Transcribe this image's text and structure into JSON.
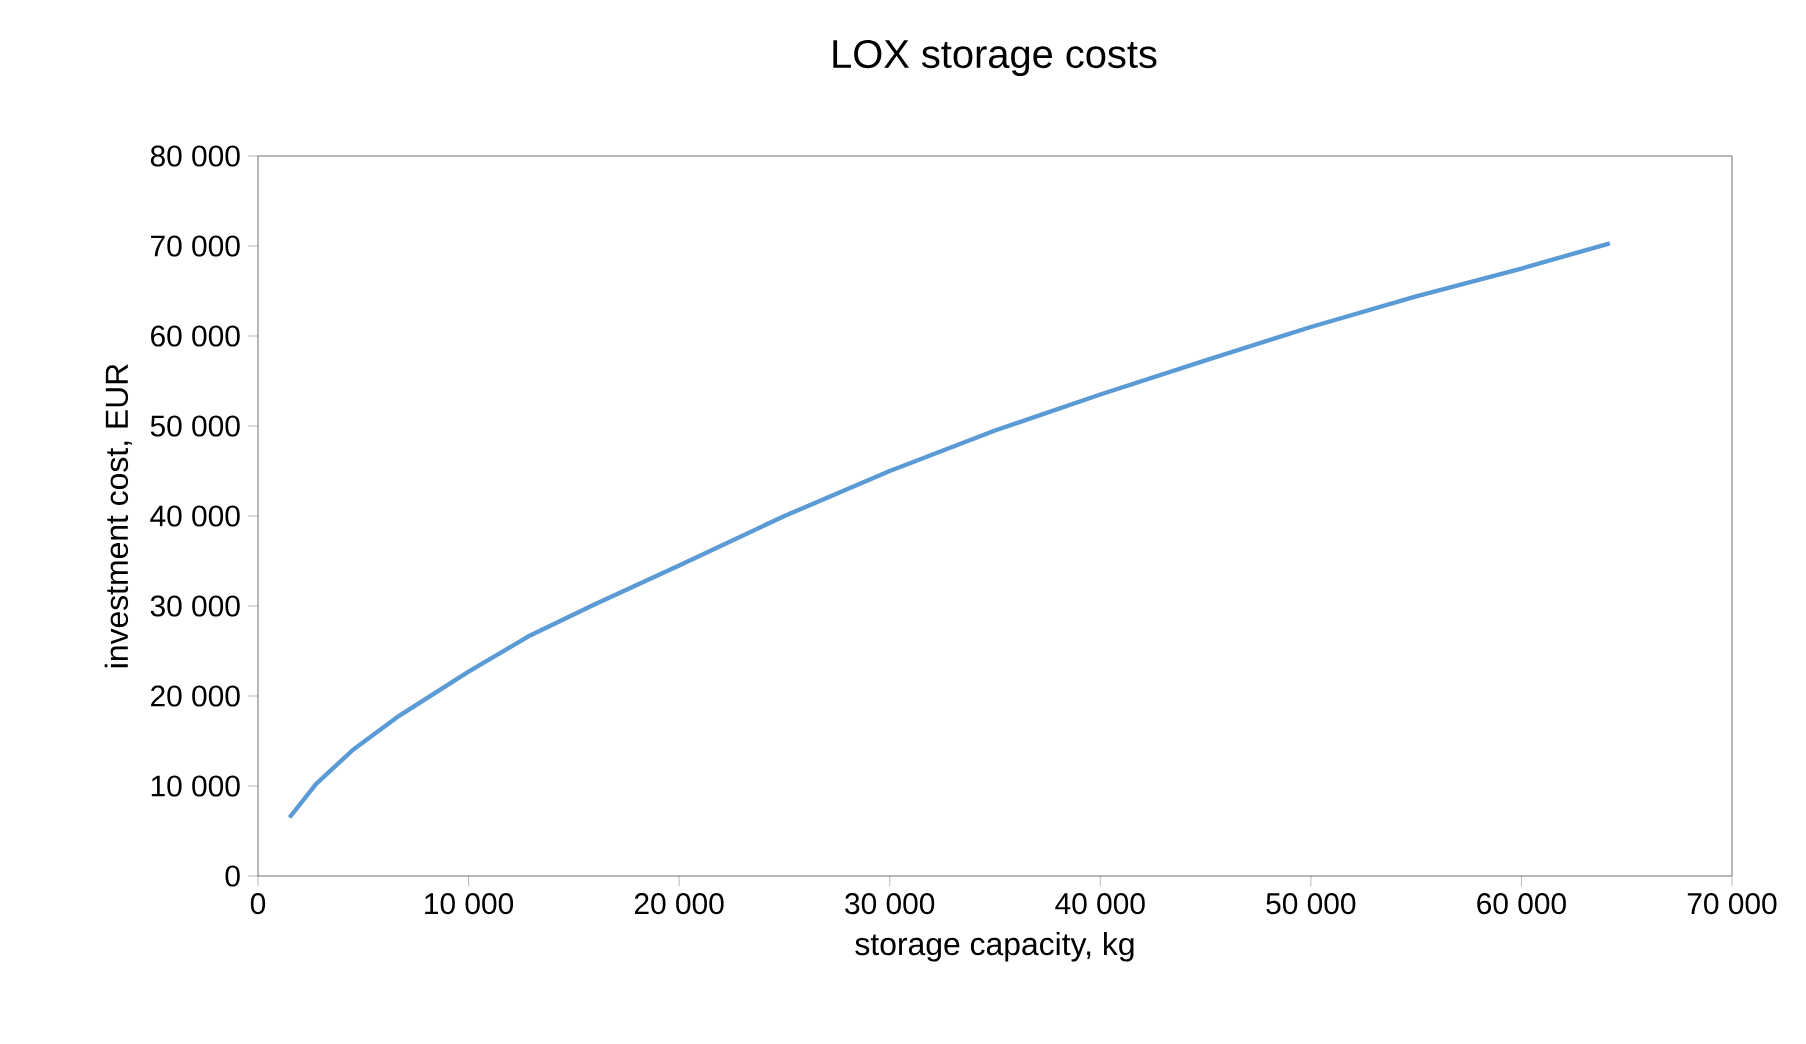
{
  "chart_data": {
    "type": "line",
    "title": "LOX storage costs",
    "xlabel": "storage capacity, kg",
    "ylabel": "investment cost, EUR",
    "x": [
      1500,
      2750,
      4500,
      6700,
      10000,
      12900,
      16000,
      20000,
      25000,
      30000,
      35000,
      40000,
      45000,
      50000,
      55000,
      60000,
      64200
    ],
    "values": [
      6500,
      10200,
      14000,
      17800,
      22700,
      26700,
      30200,
      34500,
      40000,
      45000,
      49500,
      53500,
      57300,
      61000,
      64400,
      67500,
      70300
    ],
    "color": "#5b9bd5",
    "xlim": [
      0,
      70000
    ],
    "ylim": [
      0,
      80000
    ],
    "xticks": [
      0,
      {
        "value": 10000,
        "label": "10 000"
      },
      {
        "value": 20000,
        "label": "20 000"
      },
      {
        "value": 30000,
        "label": "30 000"
      },
      {
        "value": 40000,
        "label": "40 000"
      },
      {
        "value": 50000,
        "label": "50 000"
      },
      {
        "value": 60000,
        "label": "60 000"
      },
      {
        "value": 70000,
        "label": "70 000"
      }
    ],
    "yticks": [
      0,
      {
        "value": 10000,
        "label": "10 000"
      },
      {
        "value": 20000,
        "label": "20 000"
      },
      {
        "value": 30000,
        "label": "30 000"
      },
      {
        "value": 40000,
        "label": "40 000"
      },
      {
        "value": 50000,
        "label": "50 000"
      },
      {
        "value": 60000,
        "label": "60 000"
      },
      {
        "value": 70000,
        "label": "70 000"
      },
      {
        "value": 80000,
        "label": "80 000"
      }
    ]
  }
}
